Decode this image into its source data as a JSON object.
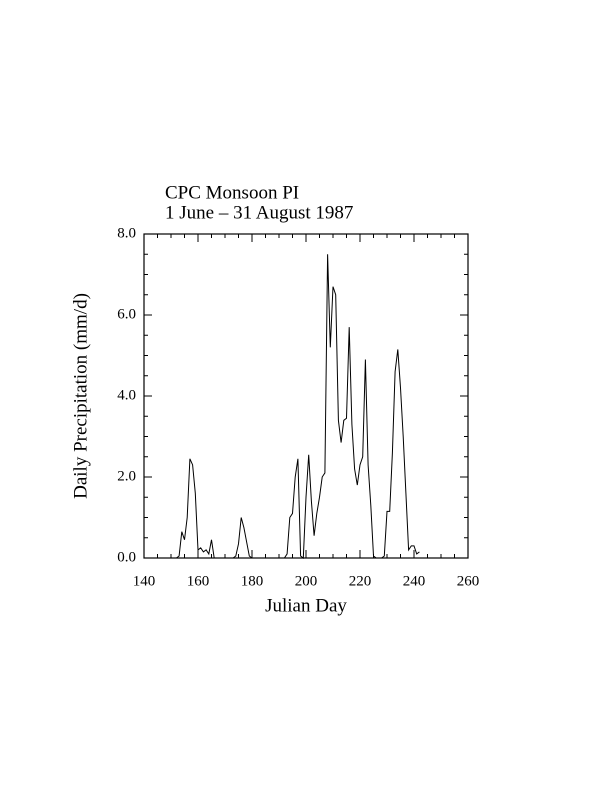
{
  "chart_data": {
    "type": "line",
    "title": [
      "CPC Monsoon PI",
      "1 June – 31 August 1987"
    ],
    "xlabel": "Julian Day",
    "ylabel": "Daily Precipitation (mm/d)",
    "color": "#000000",
    "x": [
      152,
      153,
      154,
      155,
      156,
      157,
      158,
      159,
      160,
      161,
      162,
      163,
      164,
      165,
      166,
      167,
      168,
      169,
      170,
      171,
      172,
      173,
      174,
      175,
      176,
      177,
      178,
      179,
      180,
      181,
      182,
      183,
      184,
      185,
      186,
      187,
      188,
      189,
      190,
      191,
      192,
      193,
      194,
      195,
      196,
      197,
      198,
      199,
      200,
      201,
      202,
      203,
      204,
      205,
      206,
      207,
      208,
      209,
      210,
      211,
      212,
      213,
      214,
      215,
      216,
      217,
      218,
      219,
      220,
      221,
      222,
      223,
      224,
      225,
      226,
      227,
      228,
      229,
      230,
      231,
      232,
      233,
      234,
      235,
      236,
      237,
      238,
      239,
      240,
      241,
      242
    ],
    "values": [
      0,
      0.05,
      0.65,
      0.45,
      1.0,
      2.45,
      2.3,
      1.6,
      0.2,
      0.25,
      0.15,
      0.2,
      0.1,
      0.45,
      0,
      0,
      0,
      0,
      0,
      0,
      0,
      0,
      0.05,
      0.35,
      1.0,
      0.75,
      0.4,
      0.05,
      0,
      0,
      0,
      0,
      0,
      0,
      0,
      0,
      0,
      0,
      0,
      0,
      0,
      0.1,
      1.0,
      1.1,
      2.0,
      2.45,
      0.05,
      0,
      1.5,
      2.55,
      1.4,
      0.55,
      1.1,
      1.5,
      2.0,
      2.1,
      7.5,
      5.2,
      6.7,
      6.5,
      3.4,
      2.85,
      3.4,
      3.45,
      5.7,
      3.3,
      2.2,
      1.8,
      2.3,
      2.5,
      4.9,
      2.3,
      1.3,
      0.05,
      0,
      0,
      0,
      0.05,
      1.15,
      1.15,
      2.6,
      4.6,
      5.15,
      4.2,
      3.0,
      1.6,
      0.2,
      0.3,
      0.3,
      0.1,
      0.15
    ],
    "xlim": [
      140,
      260
    ],
    "xticks": [
      140,
      160,
      180,
      200,
      220,
      240,
      260
    ],
    "ylim": [
      0,
      8
    ],
    "yticks": [
      {
        "value": 0,
        "label": "0.0"
      },
      {
        "value": 2,
        "label": "2.0"
      },
      {
        "value": 4,
        "label": "4.0"
      },
      {
        "value": 6,
        "label": "6.0"
      },
      {
        "value": 8,
        "label": "8.0"
      }
    ]
  }
}
